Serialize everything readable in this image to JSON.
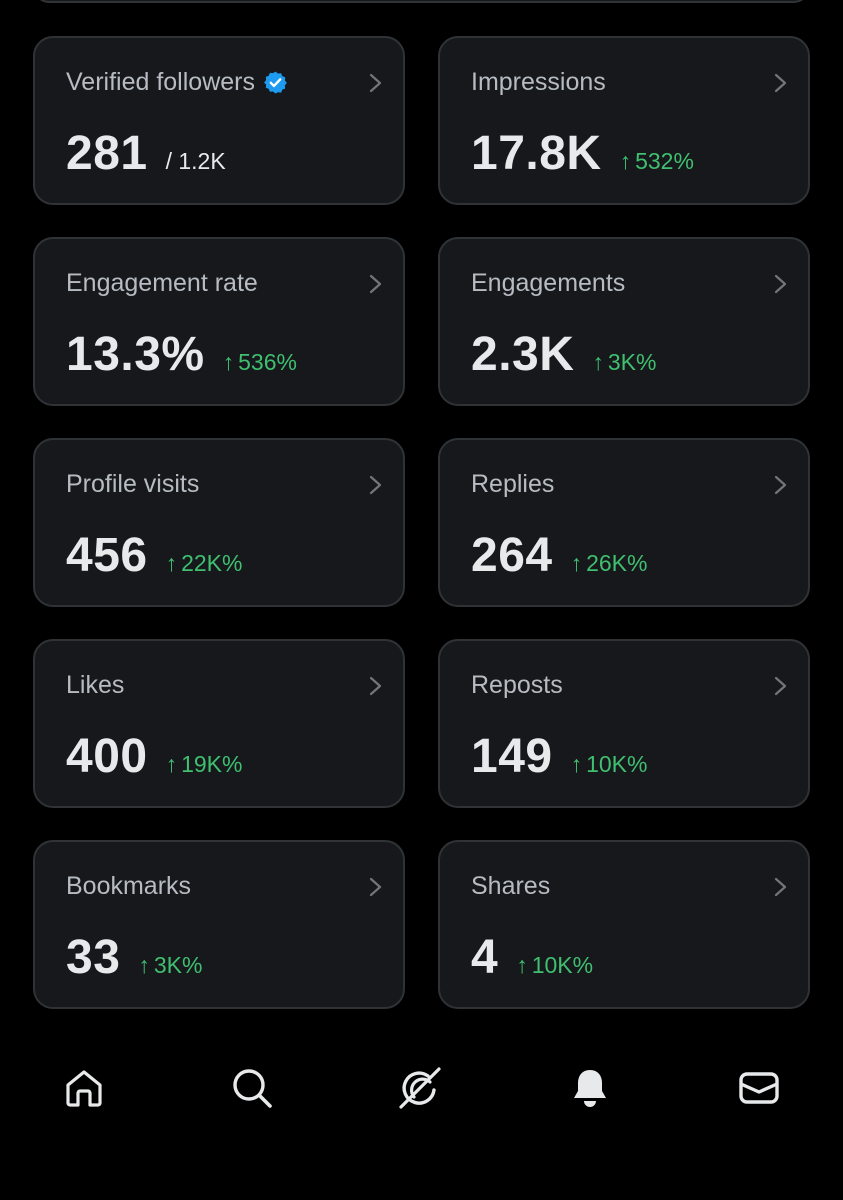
{
  "cards": [
    {
      "label": "Verified followers",
      "value": "281",
      "secondary": "/ 1.2K",
      "change": "",
      "verified": true
    },
    {
      "label": "Impressions",
      "value": "17.8K",
      "secondary": "",
      "change": "532%",
      "verified": false
    },
    {
      "label": "Engagement rate",
      "value": "13.3%",
      "secondary": "",
      "change": "536%",
      "verified": false
    },
    {
      "label": "Engagements",
      "value": "2.3K",
      "secondary": "",
      "change": "3K%",
      "verified": false
    },
    {
      "label": "Profile visits",
      "value": "456",
      "secondary": "",
      "change": "22K%",
      "verified": false
    },
    {
      "label": "Replies",
      "value": "264",
      "secondary": "",
      "change": "26K%",
      "verified": false
    },
    {
      "label": "Likes",
      "value": "400",
      "secondary": "",
      "change": "19K%",
      "verified": false
    },
    {
      "label": "Reposts",
      "value": "149",
      "secondary": "",
      "change": "10K%",
      "verified": false
    },
    {
      "label": "Bookmarks",
      "value": "33",
      "secondary": "",
      "change": "3K%",
      "verified": false
    },
    {
      "label": "Shares",
      "value": "4",
      "secondary": "",
      "change": "10K%",
      "verified": false
    }
  ],
  "change_arrow": "↑",
  "colors": {
    "background": "#000000",
    "card_background": "#16181c",
    "card_border": "#2f3336",
    "positive_change": "#3fbf6f",
    "verified_badge": "#1d9bf0",
    "label": "#b6bcc2",
    "value": "#e7e9ea"
  },
  "nav": [
    {
      "icon": "home-icon"
    },
    {
      "icon": "search-icon"
    },
    {
      "icon": "grok-icon"
    },
    {
      "icon": "notifications-bell-icon"
    },
    {
      "icon": "messages-envelope-icon"
    }
  ]
}
